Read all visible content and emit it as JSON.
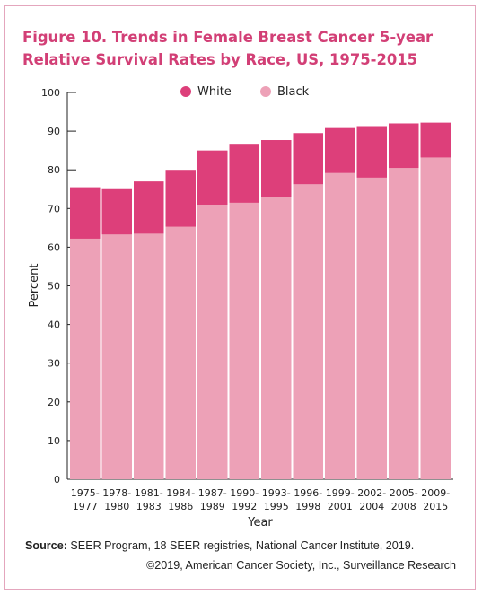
{
  "title_line1": "Figure 10. Trends in Female Breast Cancer 5-year",
  "title_line2": "Relative Survival Rates by Race, US, 1975-2015",
  "source_label": "Source:",
  "source_text": " SEER Program, 18 SEER registries, National Cancer Institute, 2019.",
  "copyright": "©2019, American Cancer Society, Inc., Surveillance Research",
  "colors": {
    "white": "#dd3f7a",
    "black": "#eda1b7",
    "title": "#d23f76",
    "frame": "#e4a6bd"
  },
  "chart_data": {
    "type": "bar",
    "xlabel": "Year",
    "ylabel": "Percent",
    "ylim": [
      0,
      100
    ],
    "yticks": [
      0,
      10,
      20,
      30,
      40,
      50,
      60,
      70,
      80,
      90,
      100
    ],
    "grid": false,
    "legend": "top-center",
    "categories": [
      [
        "1975-",
        "1977"
      ],
      [
        "1978-",
        "1980"
      ],
      [
        "1981-",
        "1983"
      ],
      [
        "1984-",
        "1986"
      ],
      [
        "1987-",
        "1989"
      ],
      [
        "1990-",
        "1992"
      ],
      [
        "1993-",
        "1995"
      ],
      [
        "1996-",
        "1998"
      ],
      [
        "1999-",
        "2001"
      ],
      [
        "2002-",
        "2004"
      ],
      [
        "2005-",
        "2008"
      ],
      [
        "2009-",
        "2015"
      ]
    ],
    "series": [
      {
        "name": "White",
        "color": "#dd3f7a",
        "values": [
          75.5,
          75,
          77,
          80,
          85,
          86.5,
          87.7,
          89.5,
          90.8,
          91.3,
          92,
          92.2
        ]
      },
      {
        "name": "Black",
        "color": "#eda1b7",
        "values": [
          62.2,
          63.3,
          63.5,
          65.3,
          71,
          71.5,
          73,
          76.3,
          79.2,
          78,
          80.5,
          83.2
        ]
      }
    ]
  }
}
